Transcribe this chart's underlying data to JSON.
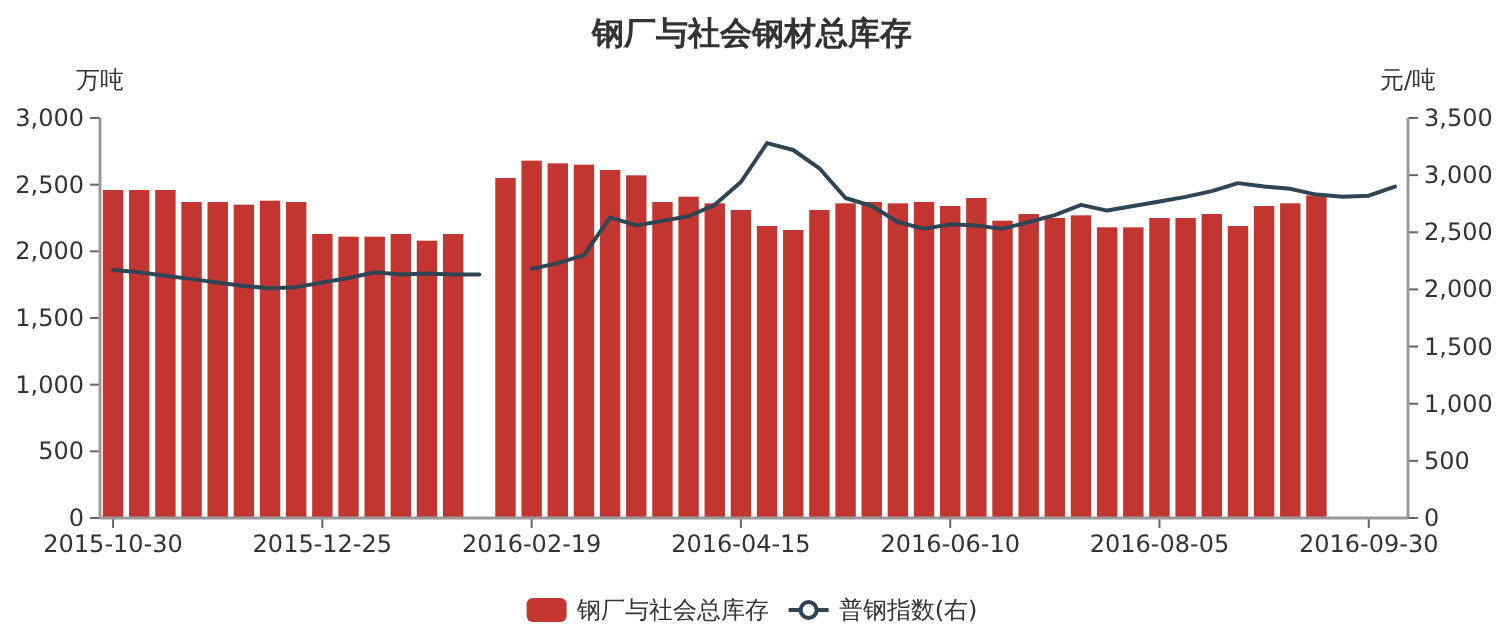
{
  "chart_data": {
    "type": "bar",
    "title": "钢厂与社会钢材总库存",
    "ylabel": "万吨",
    "y2label": "元/吨",
    "categories": [
      "2015-10-30",
      null,
      null,
      null,
      null,
      null,
      null,
      null,
      "2015-12-25",
      null,
      null,
      null,
      null,
      null,
      null,
      null,
      "2016-02-19",
      null,
      null,
      null,
      null,
      null,
      null,
      null,
      "2016-04-15",
      null,
      null,
      null,
      null,
      null,
      null,
      null,
      "2016-06-10",
      null,
      null,
      null,
      null,
      null,
      null,
      null,
      "2016-08-05",
      null,
      null,
      null,
      null,
      null,
      null,
      null,
      "2016-09-30",
      null
    ],
    "ylim": [
      0,
      3000
    ],
    "yticks": [
      0,
      {
        "value": 500,
        "label": "500"
      },
      {
        "value": 1000,
        "label": "1,000"
      },
      {
        "value": 1500,
        "label": "1,500"
      },
      {
        "value": 2000,
        "label": "2,000"
      },
      {
        "value": 2500,
        "label": "2,500"
      },
      {
        "value": 3000,
        "label": "3,000"
      }
    ],
    "y2lim": [
      0,
      3500
    ],
    "y2ticks": [
      0,
      {
        "value": 500,
        "label": "500"
      },
      {
        "value": 1000,
        "label": "1,000"
      },
      {
        "value": 1500,
        "label": "1,500"
      },
      {
        "value": 2000,
        "label": "2,000"
      },
      {
        "value": 2500,
        "label": "2,500"
      },
      {
        "value": 3000,
        "label": "3,000"
      },
      {
        "value": 3500,
        "label": "3,500"
      }
    ],
    "legend": "bottom",
    "series": [
      {
        "name": "钢厂与社会总库存",
        "color": "#c23531",
        "values": [
          2460,
          2460,
          2460,
          2370,
          2370,
          2350,
          2380,
          2370,
          2130,
          2110,
          2110,
          2130,
          2080,
          2130,
          null,
          2550,
          2680,
          2660,
          2650,
          2610,
          2570,
          2370,
          2410,
          2360,
          2310,
          2190,
          2160,
          2310,
          2360,
          2370,
          2360,
          2370,
          2340,
          2400,
          2230,
          2280,
          2250,
          2270,
          2180,
          2180,
          2250,
          2250,
          2280,
          2190,
          2340,
          2360,
          2420,
          null,
          null,
          null
        ]
      },
      {
        "name": "普钢指数(右)",
        "type": "line",
        "axis": "y2",
        "color": "#2f4554",
        "values": [
          2170,
          2150,
          2120,
          2090,
          2060,
          2030,
          2010,
          2020,
          2060,
          2100,
          2150,
          2130,
          2140,
          2130,
          2130,
          null,
          2180,
          2230,
          2300,
          2630,
          2560,
          2600,
          2640,
          2740,
          2940,
          3280,
          3220,
          3060,
          2800,
          2730,
          2590,
          2530,
          2570,
          2560,
          2530,
          2590,
          2650,
          2740,
          2690,
          2730,
          2770,
          2810,
          2860,
          2930,
          2900,
          2880,
          2830,
          2810,
          2820,
          2900
        ]
      }
    ]
  }
}
